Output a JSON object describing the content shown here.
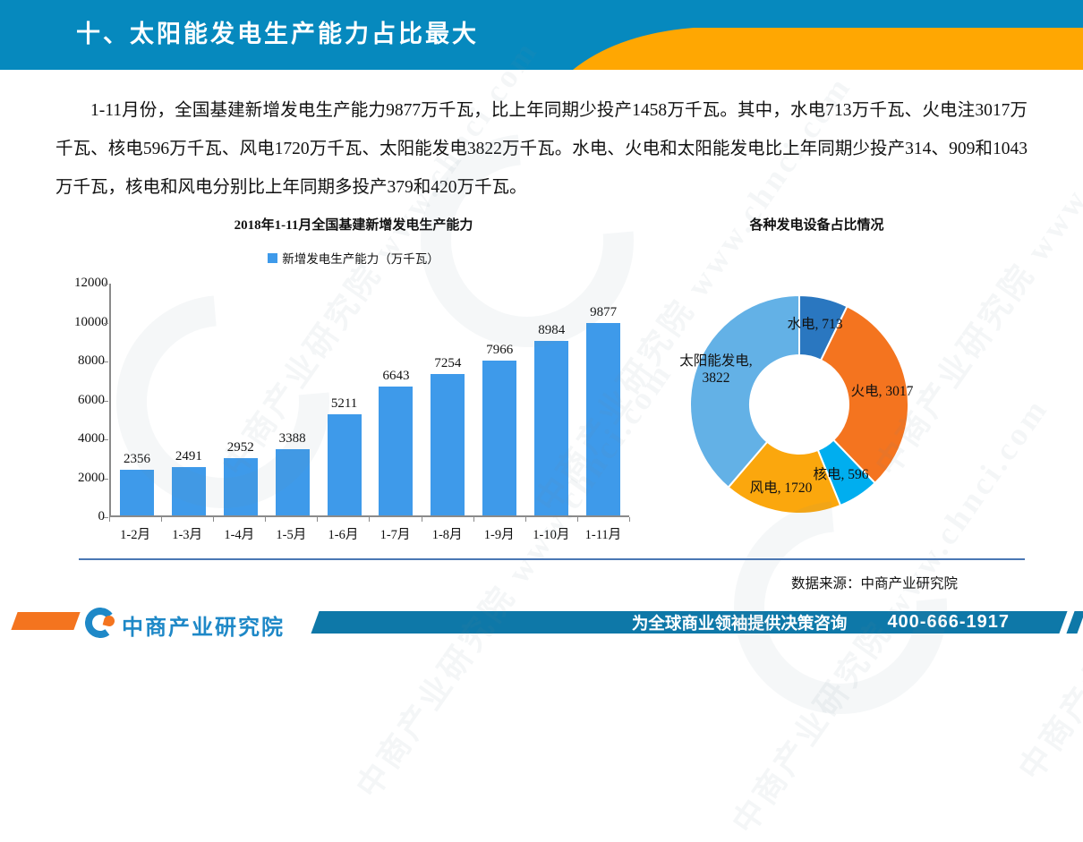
{
  "header": {
    "title": "十、太阳能发电生产能力占比最大"
  },
  "watermark": {
    "text": "中商产业研究院 www.chnci.com"
  },
  "paragraph": {
    "text": "1-11月份，全国基建新增发电生产能力9877万千瓦，比上年同期少投产1458万千瓦。其中，水电713万千瓦、火电注3017万千瓦、核电596万千瓦、风电1720万千瓦、太阳能发电3822万千瓦。水电、火电和太阳能发电比上年同期少投产314、909和1043万千瓦，核电和风电分别比上年同期多投产379和420万千瓦。"
  },
  "chart_data": [
    {
      "type": "bar",
      "title": "2018年1-11月全国基建新增发电生产能力",
      "legend": "新增发电生产能力（万千瓦）",
      "legend_position": "top",
      "categories": [
        "1-2月",
        "1-3月",
        "1-4月",
        "1-5月",
        "1-6月",
        "1-7月",
        "1-8月",
        "1-9月",
        "1-10月",
        "1-11月"
      ],
      "values": [
        2356,
        2491,
        2952,
        3388,
        5211,
        6643,
        7254,
        7966,
        8984,
        9877
      ],
      "xlabel": "",
      "ylabel": "",
      "ylim": [
        0,
        12000
      ],
      "ytick_step": 2000,
      "grid": false,
      "bar_color": "#3E9AEA"
    },
    {
      "type": "pie",
      "subtype": "donut",
      "title": "各种发电设备占比情况",
      "slices": [
        {
          "name": "水电",
          "value": 713,
          "color": "#2A77C0",
          "label": "水电, 713"
        },
        {
          "name": "火电",
          "value": 3017,
          "color": "#F4741F",
          "label": "火电, 3017"
        },
        {
          "name": "核电",
          "value": 596,
          "color": "#00AEEF",
          "label": "核电, 596"
        },
        {
          "name": "风电",
          "value": 1720,
          "color": "#FBA70D",
          "label": "风电, 1720"
        },
        {
          "name": "太阳能发电",
          "value": 3822,
          "color": "#63B1E6",
          "label": "太阳能发电,\n3822"
        }
      ]
    }
  ],
  "source_note": "数据来源：中商产业研究院",
  "footer": {
    "brand": "中商产业研究院",
    "slogan": "为全球商业领袖提供决策咨询",
    "phone": "400-666-1917"
  },
  "colors": {
    "header_blue": "#0689BE",
    "band_orange": "#FFA702",
    "footer_bar_blue": "#0E78A8",
    "footer_accent_orange": "#F4741F",
    "logo_blue": "#1E88C7",
    "divider_blue": "#4A77B4",
    "axis_gray": "#8a8a8a"
  }
}
